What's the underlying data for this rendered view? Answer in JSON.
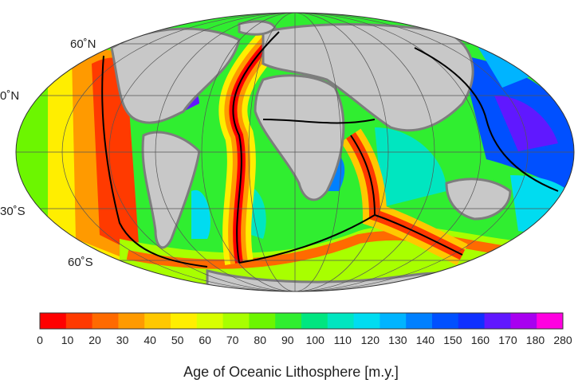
{
  "map": {
    "latitude_labels": [
      {
        "id": "lat-60n",
        "text": "60˚N"
      },
      {
        "id": "lat-30n",
        "text": "0˚N"
      },
      {
        "id": "lat-30s",
        "text": "30˚S"
      },
      {
        "id": "lat-60s",
        "text": "60˚S"
      }
    ],
    "colors": {
      "land": "#c8c8c8",
      "shelf": "#7d7d7d",
      "graticule": "#555555",
      "plate_boundary": "#000000"
    }
  },
  "colorbar": {
    "title": "Age of Oceanic Lithosphere [m.y.]",
    "ticks": [
      "0",
      "10",
      "20",
      "30",
      "40",
      "50",
      "60",
      "70",
      "80",
      "90",
      "100",
      "110",
      "120",
      "130",
      "140",
      "150",
      "160",
      "170",
      "180",
      "280"
    ],
    "colors": [
      "#ff0000",
      "#ff3a00",
      "#ff6a00",
      "#ff9a00",
      "#ffc800",
      "#ffee00",
      "#d8ff00",
      "#a8ff00",
      "#6cf600",
      "#30ee30",
      "#00e680",
      "#00e6c0",
      "#00dcf0",
      "#00b4ff",
      "#0080ff",
      "#0050ff",
      "#1030ff",
      "#6018ff",
      "#a800f0",
      "#ff00e0"
    ]
  }
}
